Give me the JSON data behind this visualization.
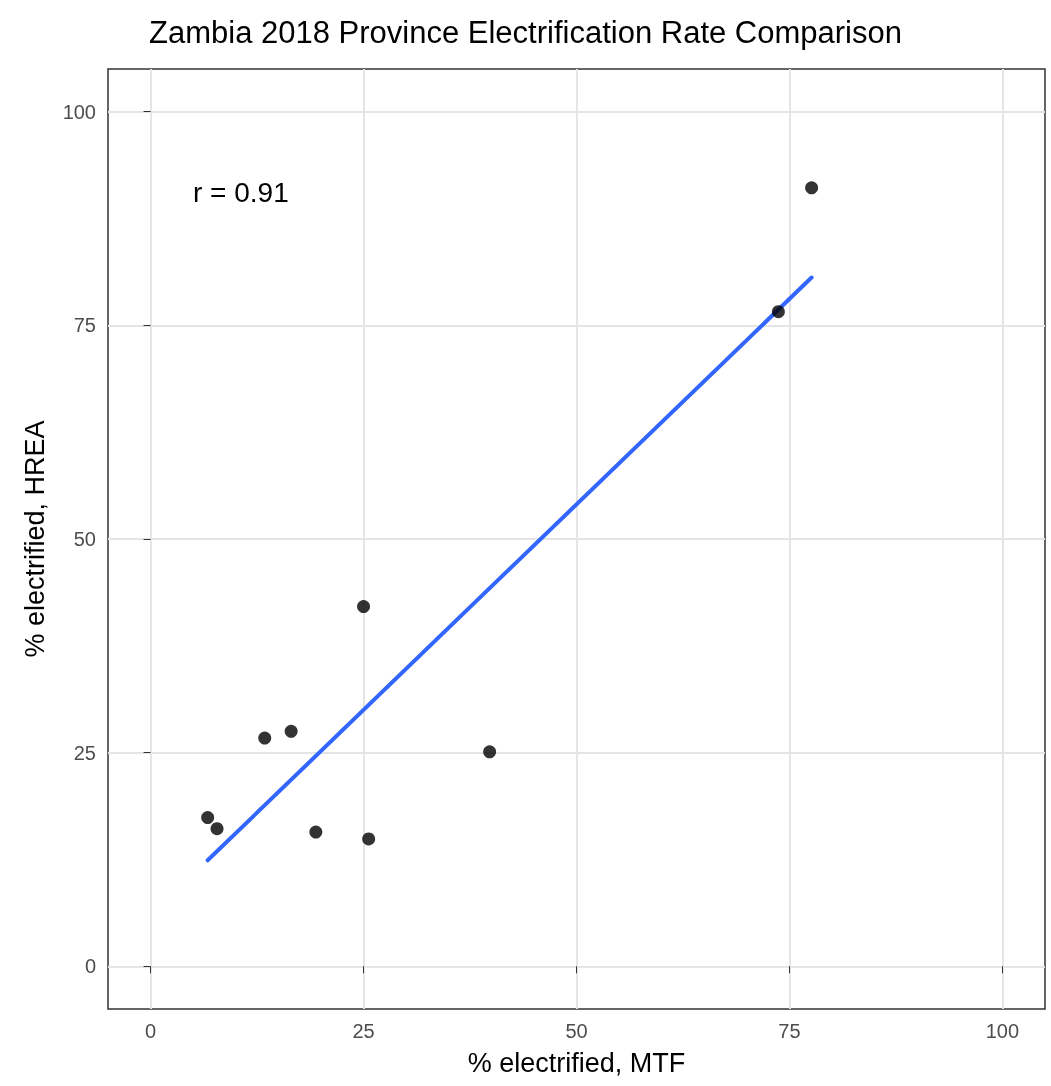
{
  "chart_data": {
    "type": "scatter",
    "title": "Zambia 2018 Province Electrification Rate Comparison",
    "xlabel": "% electrified, MTF",
    "ylabel": "% electrified, HREA",
    "annotations": [
      "r = 0.91"
    ],
    "xlim": [
      -5,
      105
    ],
    "ylim": [
      -5,
      105
    ],
    "xticks": [
      0,
      25,
      50,
      75,
      100
    ],
    "yticks": [
      0,
      25,
      50,
      75,
      100
    ],
    "grid": true,
    "series": [
      {
        "marker": "circle",
        "color": "#000000",
        "x": [
          77.6,
          73.7,
          25.0,
          13.4,
          16.5,
          39.8,
          6.7,
          7.8,
          19.4,
          25.6
        ],
        "values": [
          91.1,
          76.6,
          42.1,
          26.7,
          27.5,
          25.1,
          17.4,
          16.1,
          15.7,
          14.9
        ]
      },
      {
        "type": "line",
        "marker": "none",
        "line_style": "solid",
        "color": "#3366ff",
        "x": [
          6.7,
          77.6
        ],
        "values": [
          12.4,
          80.6
        ]
      }
    ]
  }
}
